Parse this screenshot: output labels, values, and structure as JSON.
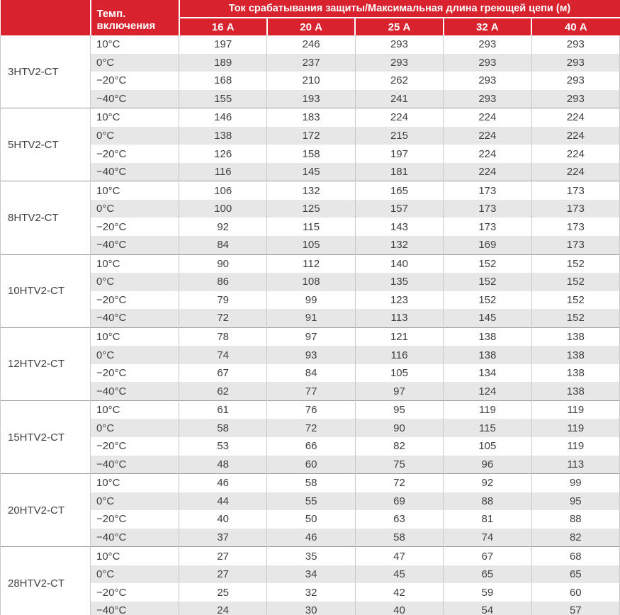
{
  "colors": {
    "header_red": "#d8232e",
    "header_text": "#ffffff",
    "stripe_gray": "#e7e7e7",
    "column_border": "#c9c9c9",
    "group_border": "#9c9c9c",
    "body_text": "#404040"
  },
  "chart_data": {
    "type": "table",
    "title": "Ток срабатывания защиты/Максимальная длина греющей цепи (м)",
    "corner_header": "",
    "temp_column_header": "Темп. включения",
    "current_columns": [
      "16 А",
      "20 А",
      "25 А",
      "32 А",
      "40 А"
    ],
    "temperatures": [
      "10°C",
      "0°C",
      "−20°C",
      "−40°C"
    ],
    "groups": [
      {
        "model": "3HTV2-CT",
        "rows": [
          [
            197,
            246,
            293,
            293,
            293
          ],
          [
            189,
            237,
            293,
            293,
            293
          ],
          [
            168,
            210,
            262,
            293,
            293
          ],
          [
            155,
            193,
            241,
            293,
            293
          ]
        ]
      },
      {
        "model": "5HTV2-CT",
        "rows": [
          [
            146,
            183,
            224,
            224,
            224
          ],
          [
            138,
            172,
            215,
            224,
            224
          ],
          [
            126,
            158,
            197,
            224,
            224
          ],
          [
            116,
            145,
            181,
            224,
            224
          ]
        ]
      },
      {
        "model": "8HTV2-CT",
        "rows": [
          [
            106,
            132,
            165,
            173,
            173
          ],
          [
            100,
            125,
            157,
            173,
            173
          ],
          [
            92,
            115,
            143,
            173,
            173
          ],
          [
            84,
            105,
            132,
            169,
            173
          ]
        ]
      },
      {
        "model": "10HTV2-CT",
        "rows": [
          [
            90,
            112,
            140,
            152,
            152
          ],
          [
            86,
            108,
            135,
            152,
            152
          ],
          [
            79,
            99,
            123,
            152,
            152
          ],
          [
            72,
            91,
            113,
            145,
            152
          ]
        ]
      },
      {
        "model": "12HTV2-CT",
        "rows": [
          [
            78,
            97,
            121,
            138,
            138
          ],
          [
            74,
            93,
            116,
            138,
            138
          ],
          [
            67,
            84,
            105,
            134,
            138
          ],
          [
            62,
            77,
            97,
            124,
            138
          ]
        ]
      },
      {
        "model": "15HTV2-CT",
        "rows": [
          [
            61,
            76,
            95,
            119,
            119
          ],
          [
            58,
            72,
            90,
            115,
            119
          ],
          [
            53,
            66,
            82,
            105,
            119
          ],
          [
            48,
            60,
            75,
            96,
            113
          ]
        ]
      },
      {
        "model": "20HTV2-CT",
        "rows": [
          [
            46,
            58,
            72,
            92,
            99
          ],
          [
            44,
            55,
            69,
            88,
            95
          ],
          [
            40,
            50,
            63,
            81,
            88
          ],
          [
            37,
            46,
            58,
            74,
            82
          ]
        ]
      },
      {
        "model": "28HTV2-CT",
        "rows": [
          [
            27,
            35,
            47,
            67,
            68
          ],
          [
            27,
            34,
            45,
            65,
            65
          ],
          [
            25,
            32,
            42,
            59,
            60
          ],
          [
            24,
            30,
            40,
            54,
            57
          ]
        ]
      }
    ]
  }
}
